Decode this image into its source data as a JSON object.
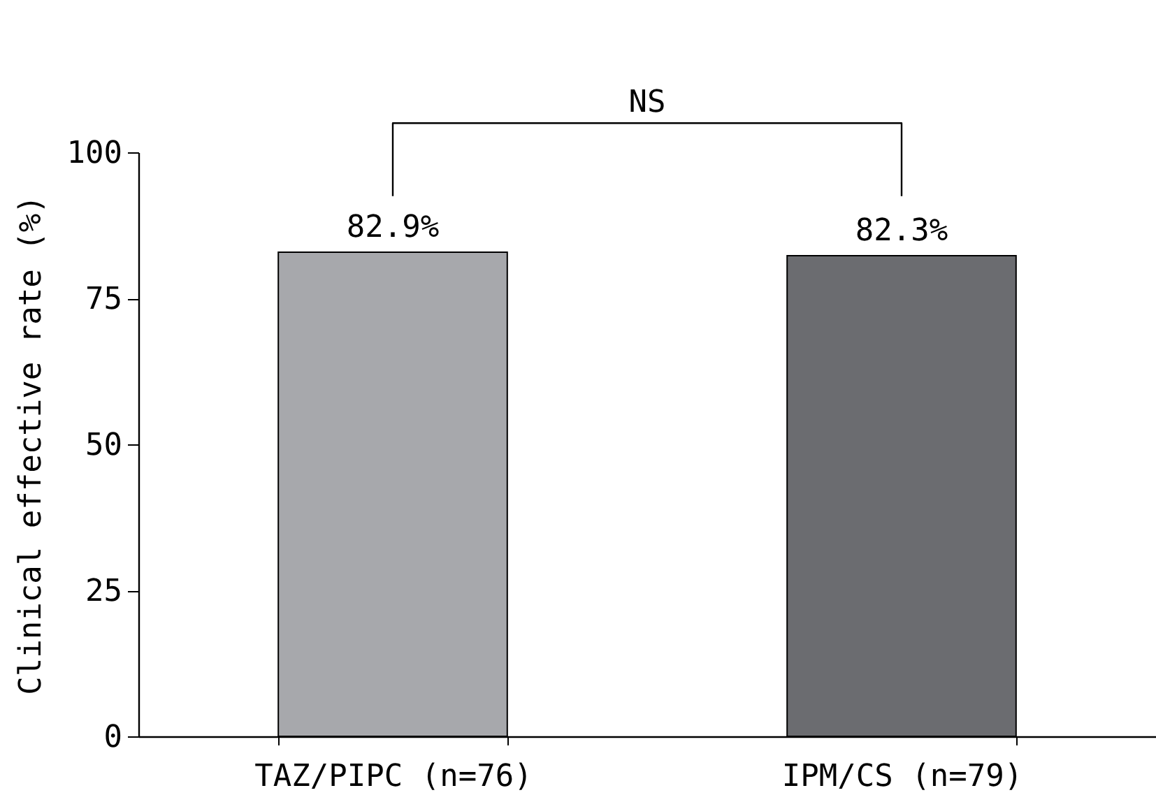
{
  "chart_data": {
    "type": "bar",
    "categories": [
      "TAZ/PIPC (n=76)",
      "IPM/CS (n=79)"
    ],
    "values": [
      82.9,
      82.3
    ],
    "colors": [
      "#a7a8ac",
      "#6b6c70"
    ],
    "value_labels": [
      "82.9%",
      "82.3%"
    ],
    "ylabel": "Clinical effective rate (%)",
    "ylim": [
      0,
      100
    ],
    "yticks": [
      0,
      25,
      50,
      75,
      100
    ],
    "grid": false,
    "annotations": [
      "NS"
    ]
  }
}
